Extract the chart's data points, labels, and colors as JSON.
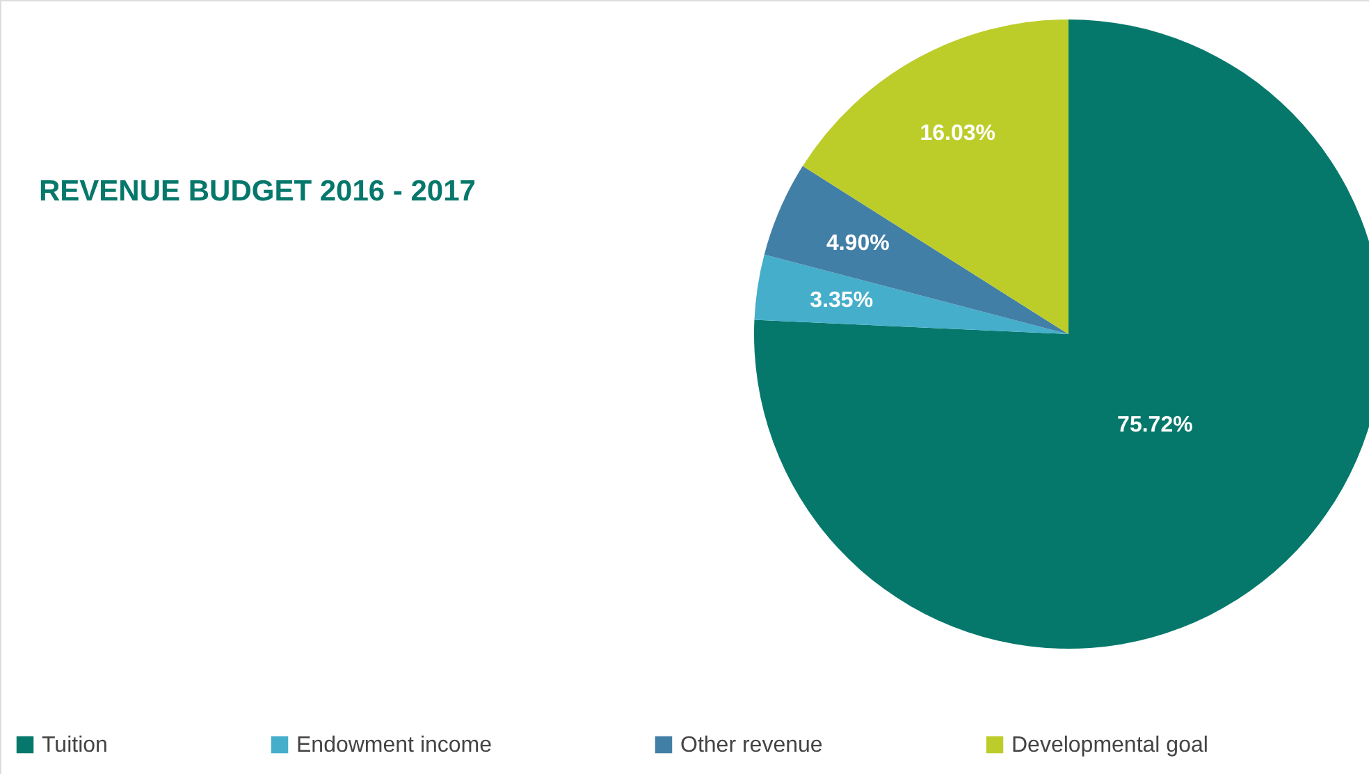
{
  "chart_data": {
    "type": "pie",
    "title": "REVENUE BUDGET 2016 - 2017",
    "categories": [
      "Tuition",
      "Endowment income",
      "Other revenue",
      "Developmental goal"
    ],
    "values": [
      75.72,
      3.35,
      4.9,
      16.03
    ],
    "colors": [
      "#06786b",
      "#45aecb",
      "#427fa6",
      "#bccd2a"
    ],
    "value_labels": [
      "75.72%",
      "3.35%",
      "4.90%",
      "16.03%"
    ],
    "legend": "bottom"
  }
}
